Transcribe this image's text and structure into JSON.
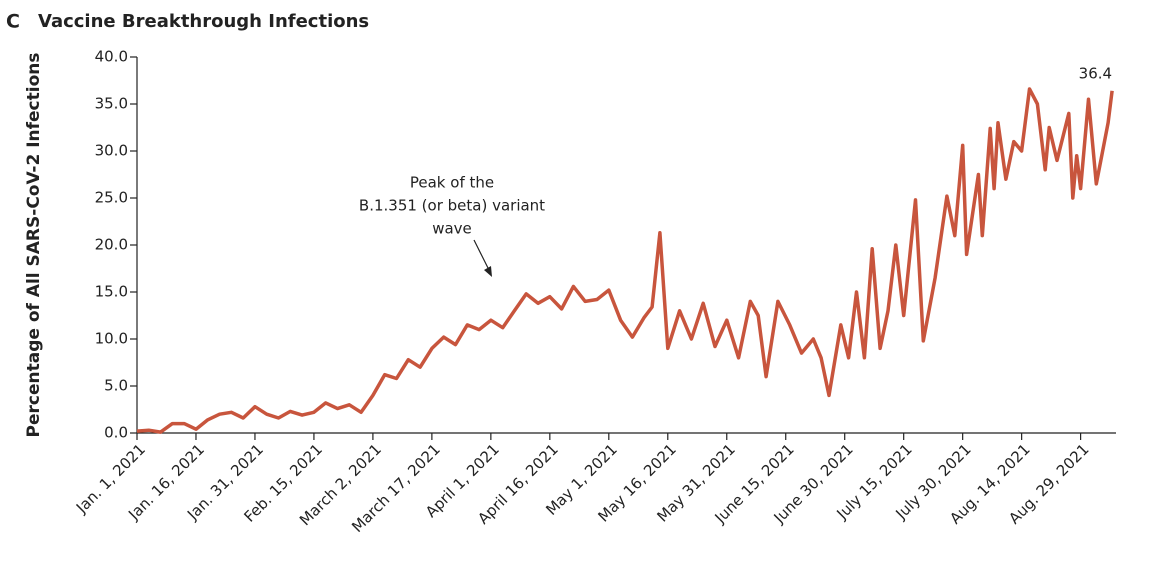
{
  "chart_data": {
    "type": "line",
    "panel": "C",
    "title": "Vaccine Breakthrough Infections",
    "y_label": "Percentage of All SARS-CoV-2 Infections",
    "color": "#c8553d",
    "annotation": [
      "Peak of the",
      "B.1.351 (or beta) variant",
      "wave"
    ],
    "x": [
      "2021-01-01",
      "2021-01-04",
      "2021-01-07",
      "2021-01-10",
      "2021-01-13",
      "2021-01-16",
      "2021-01-19",
      "2021-01-22",
      "2021-01-25",
      "2021-01-28",
      "2021-01-31",
      "2021-02-03",
      "2021-02-06",
      "2021-02-09",
      "2021-02-12",
      "2021-02-15",
      "2021-02-18",
      "2021-02-21",
      "2021-02-24",
      "2021-02-27",
      "2021-03-02",
      "2021-03-05",
      "2021-03-08",
      "2021-03-11",
      "2021-03-14",
      "2021-03-17",
      "2021-03-20",
      "2021-03-23",
      "2021-03-26",
      "2021-03-29",
      "2021-04-01",
      "2021-04-04",
      "2021-04-07",
      "2021-04-10",
      "2021-04-13",
      "2021-04-16",
      "2021-04-19",
      "2021-04-22",
      "2021-04-25",
      "2021-04-28",
      "2021-05-01",
      "2021-05-04",
      "2021-05-07",
      "2021-05-10",
      "2021-05-12",
      "2021-05-14",
      "2021-05-16",
      "2021-05-19",
      "2021-05-22",
      "2021-05-25",
      "2021-05-28",
      "2021-05-31",
      "2021-06-03",
      "2021-06-06",
      "2021-06-08",
      "2021-06-10",
      "2021-06-13",
      "2021-06-16",
      "2021-06-19",
      "2021-06-22",
      "2021-06-24",
      "2021-06-26",
      "2021-06-29",
      "2021-07-01",
      "2021-07-03",
      "2021-07-05",
      "2021-07-07",
      "2021-07-09",
      "2021-07-11",
      "2021-07-13",
      "2021-07-15",
      "2021-07-18",
      "2021-07-20",
      "2021-07-23",
      "2021-07-26",
      "2021-07-28",
      "2021-07-30",
      "2021-07-31",
      "2021-08-03",
      "2021-08-04",
      "2021-08-06",
      "2021-08-07",
      "2021-08-08",
      "2021-08-10",
      "2021-08-12",
      "2021-08-14",
      "2021-08-16",
      "2021-08-18",
      "2021-08-20",
      "2021-08-21",
      "2021-08-23",
      "2021-08-26",
      "2021-08-27",
      "2021-08-28",
      "2021-08-29",
      "2021-08-31",
      "2021-09-02",
      "2021-09-05",
      "2021-09-06"
    ],
    "values": [
      0.2,
      0.3,
      0.1,
      1.0,
      1.0,
      0.4,
      1.4,
      2.0,
      2.2,
      1.6,
      2.8,
      2.0,
      1.6,
      2.3,
      1.9,
      2.2,
      3.2,
      2.6,
      3.0,
      2.2,
      4.0,
      6.2,
      5.8,
      7.8,
      7.0,
      9.0,
      10.2,
      9.4,
      11.5,
      11.0,
      12.0,
      11.2,
      13.0,
      14.8,
      13.8,
      14.5,
      13.2,
      15.6,
      14.0,
      14.2,
      15.2,
      12.0,
      10.2,
      12.3,
      13.4,
      21.3,
      9.0,
      13.0,
      10.0,
      13.8,
      9.2,
      12.0,
      8.0,
      14.0,
      12.5,
      6.0,
      14.0,
      11.5,
      8.5,
      10.0,
      8.0,
      4.0,
      11.5,
      8.0,
      15.0,
      8.0,
      19.6,
      9.0,
      13.0,
      20.0,
      12.5,
      24.8,
      9.8,
      16.5,
      25.2,
      21.0,
      30.6,
      19.0,
      27.5,
      21.0,
      32.4,
      26.0,
      33.0,
      27.0,
      31.0,
      30.0,
      36.6,
      35.0,
      28.0,
      32.5,
      29.0,
      34.0,
      25.0,
      29.5,
      26.0,
      35.5,
      26.5,
      33.0,
      36.4
    ],
    "xlim": [
      "2021-01-01",
      "2021-09-07"
    ],
    "xticks": [
      {
        "value": "2021-01-01",
        "label": "Jan. 1, 2021"
      },
      {
        "value": "2021-01-16",
        "label": "Jan. 16, 2021"
      },
      {
        "value": "2021-01-31",
        "label": "Jan. 31, 2021"
      },
      {
        "value": "2021-02-15",
        "label": "Feb. 15, 2021"
      },
      {
        "value": "2021-03-02",
        "label": "March 2, 2021"
      },
      {
        "value": "2021-03-17",
        "label": "March 17, 2021"
      },
      {
        "value": "2021-04-01",
        "label": "April 1, 2021"
      },
      {
        "value": "2021-04-16",
        "label": "April 16, 2021"
      },
      {
        "value": "2021-05-01",
        "label": "May 1, 2021"
      },
      {
        "value": "2021-05-16",
        "label": "May 16, 2021"
      },
      {
        "value": "2021-05-31",
        "label": "May 31, 2021"
      },
      {
        "value": "2021-06-15",
        "label": "June 15, 2021"
      },
      {
        "value": "2021-06-30",
        "label": "June 30, 2021"
      },
      {
        "value": "2021-07-15",
        "label": "July 15, 2021"
      },
      {
        "value": "2021-07-30",
        "label": "July 30, 2021"
      },
      {
        "value": "2021-08-14",
        "label": "Aug. 14, 2021"
      },
      {
        "value": "2021-08-29",
        "label": "Aug. 29, 2021"
      }
    ],
    "ylim": [
      0,
      40
    ],
    "yticks": [
      {
        "value": 0,
        "label": "0.0"
      },
      {
        "value": 5,
        "label": "5.0"
      },
      {
        "value": 10,
        "label": "10.0"
      },
      {
        "value": 15,
        "label": "15.0"
      },
      {
        "value": 20,
        "label": "20.0"
      },
      {
        "value": 25,
        "label": "25.0"
      },
      {
        "value": 30,
        "label": "30.0"
      },
      {
        "value": 35,
        "label": "35.0"
      },
      {
        "value": 40,
        "label": "40.0"
      }
    ]
  }
}
